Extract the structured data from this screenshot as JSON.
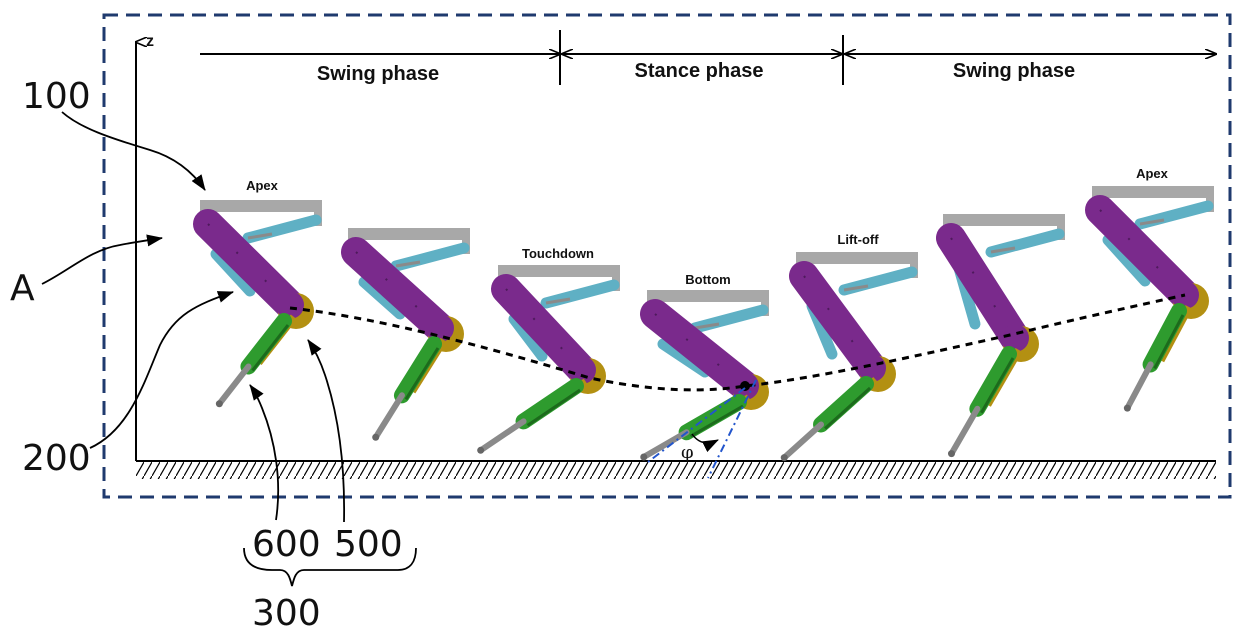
{
  "colors": {
    "frame": "#1f3a6e",
    "upper_leg": "#7a2a8c",
    "upper_leg_dark": "#4e1a5c",
    "actuator": "#5fb0c4",
    "actuator_dark": "#2f7d92",
    "body_bar": "#a8a8a8",
    "knee_joint": "#b39012",
    "lower_leg": "#2e9b2e",
    "lower_leg_dark": "#1c6b1c",
    "rod": "#8a8a8a",
    "trajectory": "#000000",
    "angle_line": "#2255cc"
  },
  "axis": {
    "z_label": "z"
  },
  "phases": [
    {
      "label": "Swing phase"
    },
    {
      "label": "Stance phase"
    },
    {
      "label": "Swing phase"
    }
  ],
  "poses": [
    {
      "label": "Apex"
    },
    {
      "label": ""
    },
    {
      "label": "Touchdown"
    },
    {
      "label": "Bottom"
    },
    {
      "label": "Lift-off"
    },
    {
      "label": ""
    },
    {
      "label": "Apex"
    }
  ],
  "angle_symbol": "φ",
  "reference_labels": {
    "r100": "100",
    "rA": "A",
    "r200": "200",
    "r600": "600",
    "r500": "500",
    "r300": "300"
  }
}
